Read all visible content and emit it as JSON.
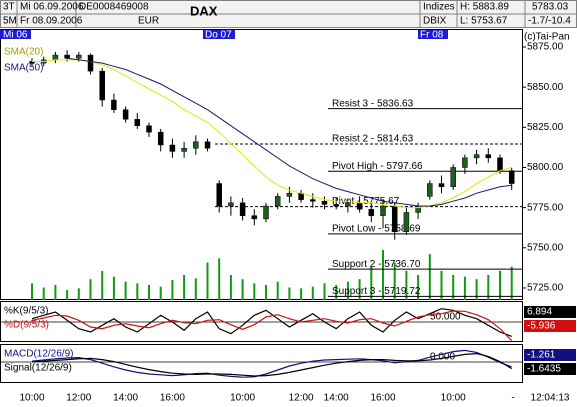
{
  "header": {
    "period": "3T",
    "interval": "5M",
    "from": "Mi 06.09.2006",
    "to": "Fr 08.09.2006",
    "isin": "DE0008469008",
    "currency": "EUR",
    "name": "DAX",
    "group": "Indizes",
    "index": "DBIX",
    "high": "H: 5883.89",
    "low": "L: 5753.67",
    "last": "5783.03",
    "change": "-1.7/-10.4",
    "copyright": "(c)Tai-Pan",
    "separator": "-",
    "clock": "12:04:13",
    "day_labels": [
      "Mi 06",
      "Do 07",
      "Fr 08"
    ]
  },
  "chart_data": [
    {
      "type": "candlestick",
      "categories": [
        "10:00",
        null,
        null,
        null,
        "12:00",
        null,
        null,
        null,
        "14:00",
        null,
        null,
        null,
        "16:00",
        null,
        null,
        null,
        null,
        null,
        "10:00",
        null,
        null,
        null,
        null,
        "12:00",
        null,
        null,
        "14:00",
        null,
        null,
        null,
        "16:00",
        null,
        null,
        null,
        null,
        null,
        "10:00",
        null,
        null,
        null,
        null,
        null
      ],
      "open": [
        5866,
        5865,
        5867,
        5870,
        5868,
        5870,
        5860,
        5842,
        5836,
        5830,
        5826,
        5822,
        5814,
        5810,
        5812,
        5816,
        5790,
        5776,
        5778,
        5770,
        5768,
        5776,
        5782,
        5784,
        5780,
        5779,
        5777,
        5776,
        5778,
        5774,
        5770,
        5776,
        5760,
        5772,
        5782,
        5790,
        5788,
        5800,
        5806,
        5808,
        5806,
        5798
      ],
      "high": [
        5868,
        5869,
        5872,
        5873,
        5872,
        5871,
        5862,
        5846,
        5838,
        5834,
        5828,
        5824,
        5818,
        5816,
        5820,
        5818,
        5792,
        5782,
        5781,
        5774,
        5778,
        5784,
        5788,
        5786,
        5784,
        5782,
        5781,
        5780,
        5782,
        5778,
        5780,
        5778,
        5776,
        5778,
        5792,
        5795,
        5802,
        5808,
        5811,
        5812,
        5808,
        5800
      ],
      "low": [
        5863,
        5863,
        5865,
        5866,
        5866,
        5858,
        5838,
        5834,
        5828,
        5824,
        5819,
        5810,
        5806,
        5806,
        5808,
        5810,
        5772,
        5770,
        5767,
        5764,
        5766,
        5774,
        5778,
        5778,
        5775,
        5774,
        5774,
        5772,
        5772,
        5766,
        5762,
        5755,
        5758,
        5768,
        5780,
        5784,
        5786,
        5796,
        5802,
        5803,
        5796,
        5786
      ],
      "close": [
        5865,
        5867,
        5870,
        5868,
        5870,
        5860,
        5842,
        5836,
        5830,
        5826,
        5822,
        5814,
        5810,
        5812,
        5816,
        5812,
        5776,
        5778,
        5770,
        5768,
        5776,
        5782,
        5784,
        5780,
        5779,
        5777,
        5776,
        5778,
        5774,
        5770,
        5776,
        5760,
        5772,
        5775,
        5790,
        5788,
        5800,
        5806,
        5808,
        5806,
        5798,
        5790
      ],
      "up_color": "#1e5e1e",
      "down_color": "#000000",
      "volume": {
        "color": "#129a12",
        "values": [
          20,
          15,
          18,
          12,
          14,
          25,
          35,
          28,
          22,
          20,
          18,
          16,
          24,
          30,
          26,
          45,
          50,
          30,
          25,
          20,
          18,
          22,
          15,
          14,
          16,
          20,
          18,
          22,
          25,
          40,
          60,
          45,
          35,
          30,
          55,
          35,
          30,
          28,
          25,
          30,
          35,
          40
        ]
      },
      "series": [
        {
          "name": "SMA(20)",
          "color": "#e6e600",
          "values": [
            5866,
            5866,
            5867,
            5867,
            5867,
            5866,
            5864,
            5861,
            5857,
            5853,
            5849,
            5845,
            5841,
            5836,
            5832,
            5828,
            5822,
            5815,
            5808,
            5801,
            5794,
            5789,
            5786,
            5784,
            5782,
            5780,
            5779,
            5779,
            5778,
            5778,
            5777,
            5776,
            5775,
            5775,
            5776,
            5778,
            5781,
            5785,
            5790,
            5794,
            5798,
            5800
          ]
        },
        {
          "name": "SMA(50)",
          "color": "#1a1a6e",
          "values": [
            null,
            null,
            null,
            5868,
            5867,
            5866,
            5865,
            5863,
            5861,
            5858,
            5855,
            5852,
            5848,
            5844,
            5840,
            5836,
            5831,
            5826,
            5821,
            5816,
            5811,
            5806,
            5801,
            5797,
            5793,
            5790,
            5787,
            5785,
            5783,
            5781,
            5779,
            5778,
            5777,
            5776,
            5776,
            5777,
            5779,
            5781,
            5784,
            5786,
            5788,
            5789
          ]
        }
      ],
      "pivots": [
        {
          "label": "Resist 3 - 5836.63",
          "value": 5836.63,
          "dashed": false
        },
        {
          "label": "Resist 2 - 5814.63",
          "value": 5814.63,
          "dashed": true
        },
        {
          "label": "Pivot High - 5797.66",
          "value": 5797.66,
          "dashed": false
        },
        {
          "label": "Pivot - 5775.67",
          "value": 5775.67,
          "dashed": true
        },
        {
          "label": "Pivot Low - 5758.69",
          "value": 5758.69,
          "dashed": false
        },
        {
          "label": "Support 2 - 5736.70",
          "value": 5736.7,
          "dashed": false
        },
        {
          "label": "Support 3 - 5719.72",
          "value": 5719.72,
          "dashed": false
        }
      ],
      "ylim": [
        5717.5,
        5885.6
      ],
      "yticks": [
        {
          "value": 5875,
          "label": "5875.00"
        },
        {
          "value": 5850,
          "label": "5850.00"
        },
        {
          "value": 5825,
          "label": "5825.00"
        },
        {
          "value": 5800,
          "label": "5800.00"
        },
        {
          "value": 5775,
          "label": "5775.00"
        },
        {
          "value": 5750,
          "label": "5750.00"
        },
        {
          "value": 5725,
          "label": "5725.00"
        }
      ]
    },
    {
      "type": "line",
      "series": [
        {
          "name": "%K(9/5/3)",
          "color": "#000000",
          "values": [
            60,
            70,
            80,
            55,
            30,
            20,
            40,
            60,
            35,
            20,
            45,
            70,
            50,
            25,
            60,
            80,
            30,
            15,
            40,
            70,
            85,
            60,
            35,
            55,
            75,
            50,
            30,
            60,
            80,
            40,
            20,
            55,
            80,
            60,
            75,
            90,
            85,
            70,
            60,
            40,
            20,
            6.894
          ]
        },
        {
          "name": "%D(9/5/3)",
          "color": "#d01010",
          "values": [
            55,
            62,
            70,
            68,
            55,
            35,
            30,
            40,
            45,
            38,
            33,
            45,
            55,
            48,
            45,
            55,
            57,
            42,
            28,
            42,
            65,
            72,
            60,
            50,
            55,
            60,
            52,
            47,
            57,
            60,
            47,
            38,
            52,
            65,
            72,
            75,
            83,
            82,
            72,
            57,
            30,
            -5.936
          ]
        }
      ],
      "ylim": [
        -10,
        110
      ],
      "yticks": [
        {
          "value": 50,
          "label": "50.000"
        }
      ]
    },
    {
      "type": "line",
      "series": [
        {
          "name": "MACD(12/26/9)",
          "color": "#101080",
          "values": [
            0.2,
            0.5,
            0.8,
            1.0,
            1.1,
            0.6,
            -0.3,
            -1.2,
            -2.0,
            -2.6,
            -3.0,
            -3.2,
            -3.4,
            -3.2,
            -2.9,
            -2.8,
            -3.3,
            -3.6,
            -3.8,
            -3.7,
            -3.0,
            -2.0,
            -1.0,
            -0.3,
            0.2,
            0.5,
            0.6,
            0.7,
            0.8,
            0.6,
            0.3,
            -0.2,
            0.1,
            0.4,
            1.2,
            1.9,
            2.6,
            2.9,
            2.4,
            1.2,
            -0.1,
            -1.261
          ]
        },
        {
          "name": "Signal(12/26/9)",
          "color": "#000000",
          "values": [
            0.1,
            0.2,
            0.4,
            0.6,
            0.8,
            0.9,
            0.6,
            0.1,
            -0.6,
            -1.3,
            -1.9,
            -2.4,
            -2.8,
            -3.0,
            -3.1,
            -3.0,
            -3.0,
            -3.1,
            -3.3,
            -3.5,
            -3.4,
            -3.1,
            -2.6,
            -2.0,
            -1.4,
            -0.8,
            -0.3,
            0.1,
            0.4,
            0.6,
            0.6,
            0.4,
            0.3,
            0.3,
            0.5,
            0.9,
            1.4,
            1.9,
            2.1,
            1.4,
            0.1,
            -1.6435
          ]
        }
      ],
      "ylim": [
        -5.25,
        4.25
      ],
      "yticks": [
        {
          "value": 0,
          "label": "0.000"
        }
      ]
    }
  ]
}
